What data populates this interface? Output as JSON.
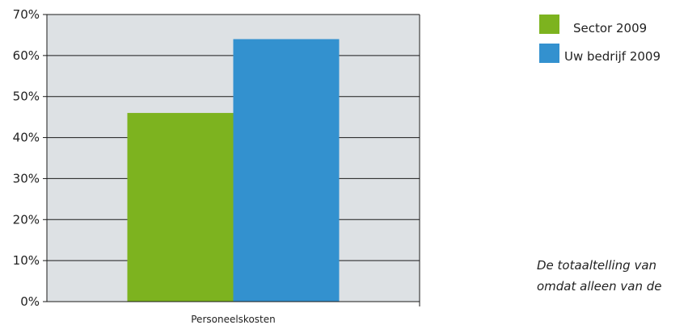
{
  "chart_data": {
    "type": "bar",
    "categories": [
      "Personeelskosten"
    ],
    "series": [
      {
        "name": "Sector 2009",
        "values": [
          46
        ],
        "color": "#7db31f"
      },
      {
        "name": "Uw bedrijf 2009",
        "values": [
          64
        ],
        "color": "#3391cf"
      }
    ],
    "ylim": [
      0,
      70
    ],
    "yticks": [
      0,
      10,
      20,
      30,
      40,
      50,
      60,
      70
    ],
    "ytick_format": "percent",
    "grid": true,
    "plot_background": "#dde1e4",
    "legend_position": "right"
  },
  "legend": [
    {
      "label": "Sector 2009",
      "color": "#7db31f"
    },
    {
      "label": "Uw bedrijf 2009",
      "color": "#3391cf"
    }
  ],
  "note": {
    "lines": [
      "De totaaltelling van",
      "omdat alleen van de"
    ]
  }
}
